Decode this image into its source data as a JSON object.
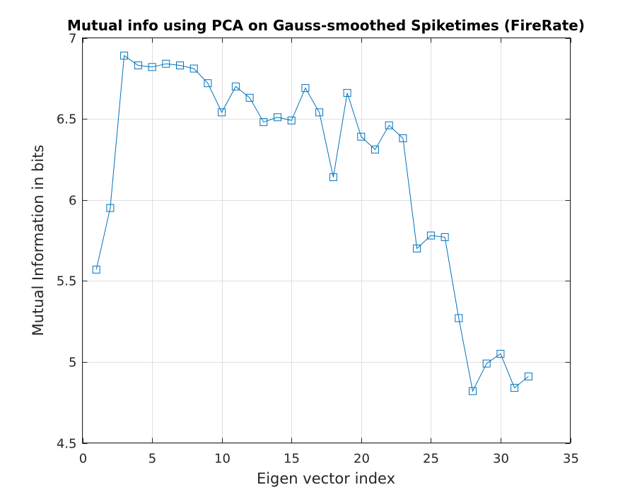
{
  "chart_data": {
    "type": "line",
    "title": "Mutual info using PCA on Gauss-smoothed Spiketimes (FireRate)",
    "xlabel": "Eigen vector index",
    "ylabel": "Mutual Information in bits",
    "xlim": [
      0,
      35
    ],
    "ylim": [
      4.5,
      7
    ],
    "xticks": [
      0,
      5,
      10,
      15,
      20,
      25,
      30,
      35
    ],
    "yticks": [
      4.5,
      5,
      5.5,
      6,
      6.5,
      7
    ],
    "xtick_labels": [
      "0",
      "5",
      "10",
      "15",
      "20",
      "25",
      "30",
      "35"
    ],
    "ytick_labels": [
      "4.5",
      "5",
      "5.5",
      "6",
      "6.5",
      "7"
    ],
    "grid": true,
    "marker": "square",
    "color": "#0072bd",
    "x": [
      1,
      2,
      3,
      4,
      5,
      6,
      7,
      8,
      9,
      10,
      11,
      12,
      13,
      14,
      15,
      16,
      17,
      18,
      19,
      20,
      21,
      22,
      23,
      24,
      25,
      26,
      27,
      28,
      29,
      30,
      31,
      32
    ],
    "y": [
      5.57,
      5.95,
      6.89,
      6.83,
      6.82,
      6.84,
      6.83,
      6.81,
      6.72,
      6.54,
      6.7,
      6.63,
      6.48,
      6.51,
      6.49,
      6.69,
      6.54,
      6.14,
      6.66,
      6.39,
      6.31,
      6.46,
      6.38,
      5.7,
      5.78,
      5.77,
      5.27,
      4.82,
      4.99,
      5.05,
      4.84,
      4.91
    ]
  }
}
